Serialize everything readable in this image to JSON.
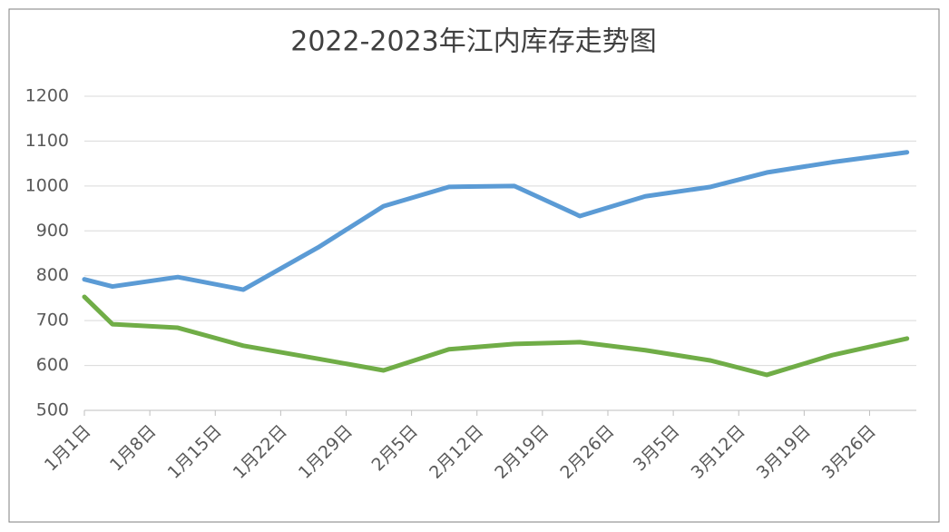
{
  "chart_data": {
    "type": "line",
    "title": "2022-2023年江内库存走势图",
    "x": [
      "1月1日",
      "1月4日",
      "1月11日",
      "1月18日",
      "1月26日",
      "2月2日",
      "2月9日",
      "2月16日",
      "2月23日",
      "3月2日",
      "3月9日",
      "3月15日",
      "3月22日",
      "3月30日"
    ],
    "series": [
      {
        "color": "#5b9bd5",
        "values": [
          792,
          776,
          797,
          769,
          863,
          955,
          998,
          1000,
          933,
          977,
          998,
          1030,
          1053,
          1075
        ]
      },
      {
        "color": "#70ad47",
        "values": [
          753,
          692,
          684,
          644,
          615,
          589,
          636,
          648,
          652,
          634,
          611,
          579,
          623,
          660
        ]
      }
    ],
    "xlim": [
      "1月1日",
      "3月31日"
    ],
    "xticks": [
      "1月1日",
      "1月8日",
      "1月15日",
      "1月22日",
      "1月29日",
      "2月5日",
      "2月12日",
      "2月19日",
      "2月26日",
      "3月5日",
      "3月12日",
      "3月19日",
      "3月26日"
    ],
    "ylim": [
      500,
      1200
    ],
    "yticks": [
      500,
      600,
      700,
      800,
      900,
      1000,
      1100,
      1200
    ],
    "grid": true
  }
}
